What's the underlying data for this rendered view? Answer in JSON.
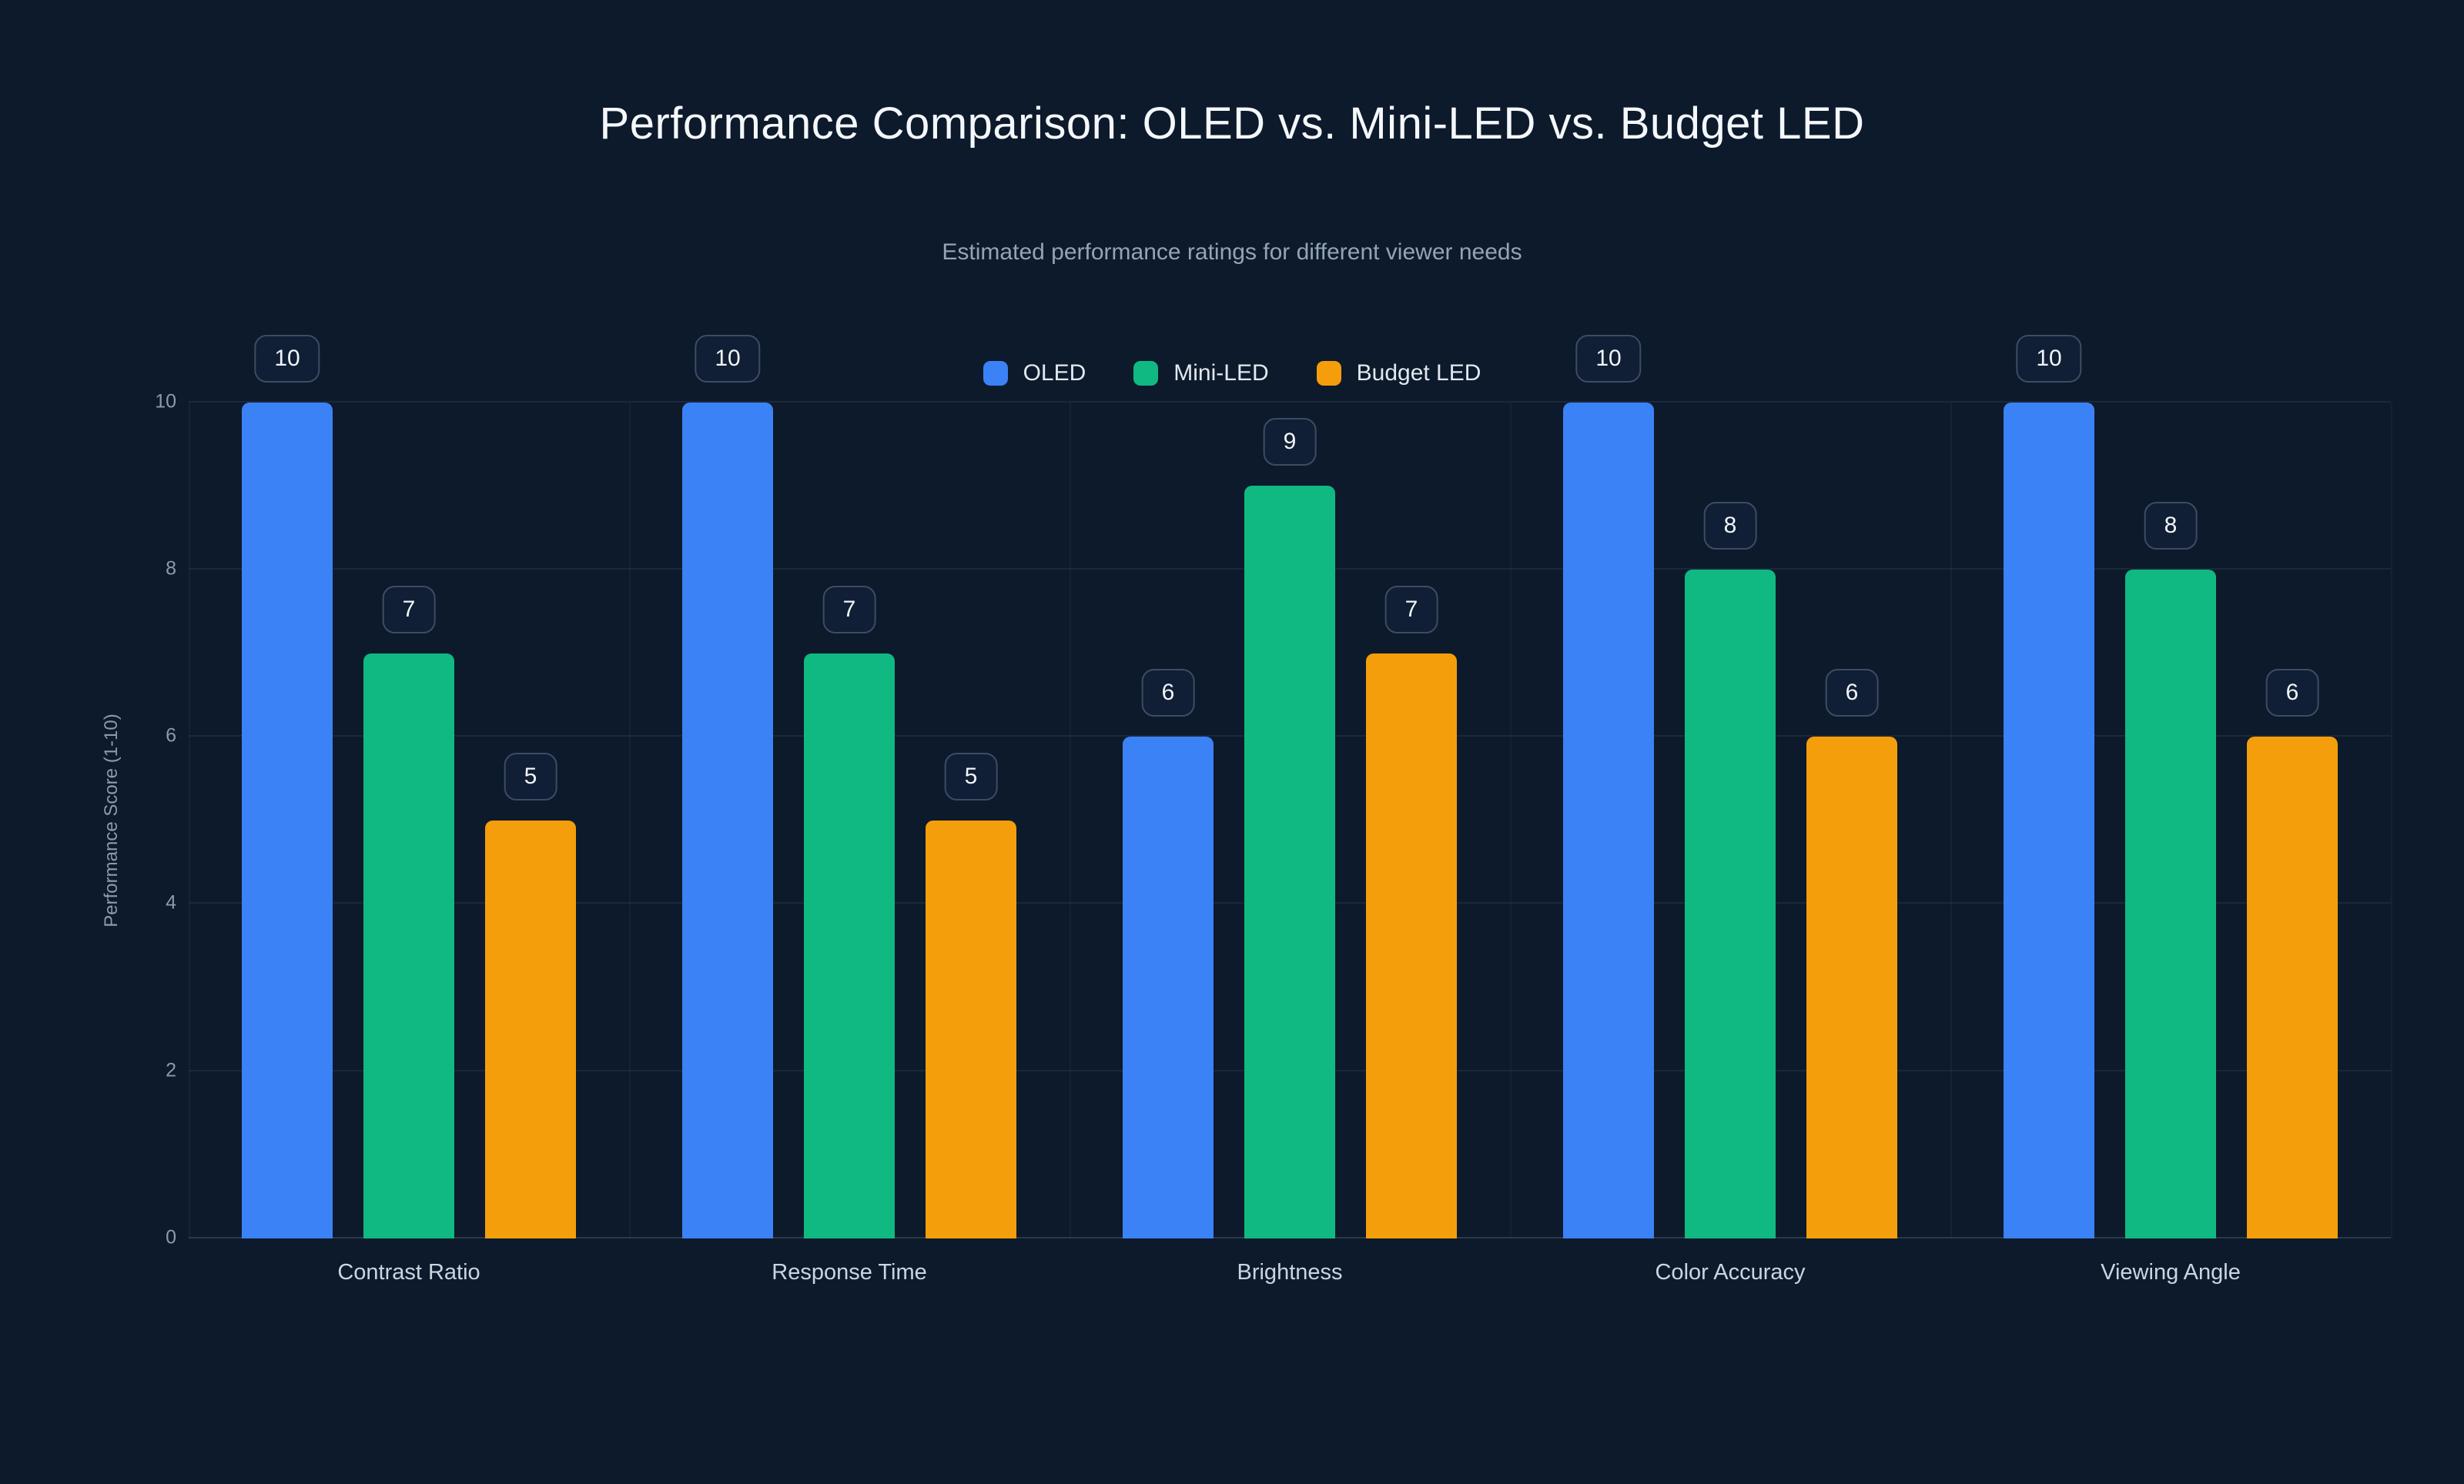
{
  "chart_data": {
    "type": "bar",
    "title": "Performance Comparison: OLED vs. Mini-LED vs. Budget LED",
    "subtitle": "Estimated performance ratings for different viewer needs",
    "xlabel": "",
    "ylabel": "Performance Score (1-10)",
    "ylim": [
      0,
      10
    ],
    "yticks": [
      0,
      2,
      4,
      6,
      8,
      10
    ],
    "grid": true,
    "legend_position": "top-center",
    "value_labels": true,
    "categories": [
      "Contrast Ratio",
      "Response Time",
      "Brightness",
      "Color Accuracy",
      "Viewing Angle"
    ],
    "series": [
      {
        "name": "OLED",
        "color": "#3b82f6",
        "values": [
          10,
          10,
          6,
          10,
          10
        ]
      },
      {
        "name": "Mini-LED",
        "color": "#10b981",
        "values": [
          7,
          7,
          9,
          8,
          8
        ]
      },
      {
        "name": "Budget LED",
        "color": "#f59e0b",
        "values": [
          5,
          5,
          7,
          6,
          6
        ]
      }
    ]
  },
  "colors": {
    "background": "#0d1a2b",
    "grid": "#94a3b8",
    "axis_text": "#8d9aab",
    "category_text": "#cbd5e1",
    "title_text": "#f4f7fb",
    "subtitle_text": "#94a3b8",
    "badge_background": "#101f35",
    "badge_border": "#3d4c63"
  }
}
